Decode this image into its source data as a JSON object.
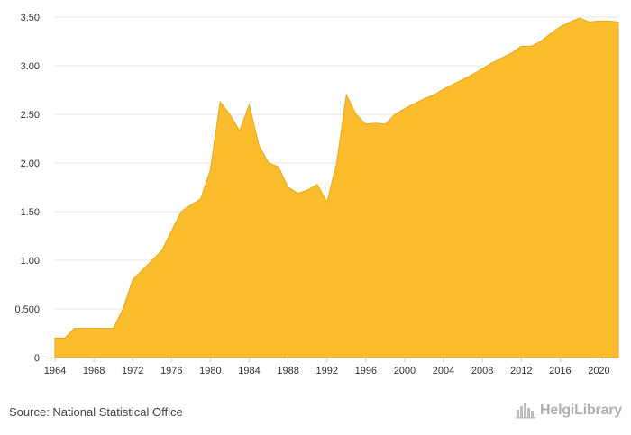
{
  "chart_data": {
    "type": "area",
    "title": "",
    "xlabel": "",
    "ylabel": "",
    "color": "#FBBD2D",
    "line_color": "#E6A81A",
    "grid": "horizontal",
    "xlim": [
      1964,
      2022
    ],
    "ylim": [
      0,
      3.5
    ],
    "y_ticks": [
      "0",
      "0.500",
      "1.00",
      "1.50",
      "2.00",
      "2.50",
      "3.00",
      "3.50"
    ],
    "y_tick_values": [
      0,
      0.5,
      1.0,
      1.5,
      2.0,
      2.5,
      3.0,
      3.5
    ],
    "x_ticks": [
      "1964",
      "1968",
      "1972",
      "1976",
      "1980",
      "1984",
      "1988",
      "1992",
      "1996",
      "2000",
      "2004",
      "2008",
      "2012",
      "2016",
      "2020"
    ],
    "x_tick_values": [
      1964,
      1968,
      1972,
      1976,
      1980,
      1984,
      1988,
      1992,
      1996,
      2000,
      2004,
      2008,
      2012,
      2016,
      2020
    ],
    "x": [
      1964,
      1965,
      1966,
      1967,
      1968,
      1969,
      1970,
      1971,
      1972,
      1973,
      1974,
      1975,
      1976,
      1977,
      1978,
      1979,
      1980,
      1981,
      1982,
      1983,
      1984,
      1985,
      1986,
      1987,
      1988,
      1989,
      1990,
      1991,
      1992,
      1993,
      1994,
      1995,
      1996,
      1997,
      1998,
      1999,
      2000,
      2001,
      2002,
      2003,
      2004,
      2005,
      2006,
      2007,
      2008,
      2009,
      2010,
      2011,
      2012,
      2013,
      2014,
      2015,
      2016,
      2017,
      2018,
      2019,
      2020,
      2021,
      2022
    ],
    "values": [
      0.2,
      0.2,
      0.3,
      0.3,
      0.3,
      0.3,
      0.3,
      0.5,
      0.8,
      0.9,
      1.0,
      1.1,
      1.3,
      1.5,
      1.57,
      1.63,
      1.93,
      2.63,
      2.5,
      2.33,
      2.6,
      2.18,
      2.0,
      1.96,
      1.75,
      1.69,
      1.72,
      1.78,
      1.6,
      2.0,
      2.7,
      2.5,
      2.4,
      2.41,
      2.4,
      2.5,
      2.56,
      2.61,
      2.66,
      2.7,
      2.76,
      2.81,
      2.86,
      2.91,
      2.97,
      3.03,
      3.08,
      3.13,
      3.2,
      3.2,
      3.25,
      3.33,
      3.4,
      3.45,
      3.49,
      3.45,
      3.46,
      3.46,
      3.45
    ]
  },
  "footer": {
    "source": "Source: National Statistical Office",
    "brand": "HelgiLibrary"
  },
  "icons": {
    "brand_logo": "city-skyline-icon"
  }
}
